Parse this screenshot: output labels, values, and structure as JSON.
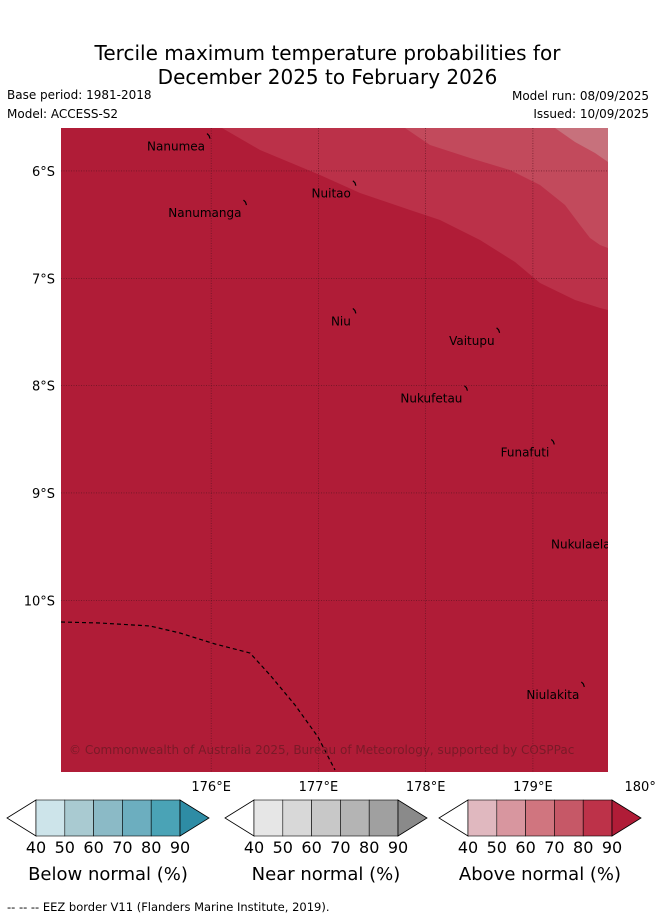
{
  "title_line1": "Tercile maximum temperature probabilities for",
  "title_line2": "December 2025 to February 2026",
  "base_period": "Base period: 1981-2018",
  "model": "Model: ACCESS-S2",
  "model_run": "Model run: 08/09/2025",
  "issued": "Issued: 10/09/2025",
  "copyright": "© Commonwealth of Australia 2025, Bureau of Meteorology, supported by COSPPac",
  "footnote": "--  --  -- EEZ border V11 (Flanders Marine Institute, 2019).",
  "map": {
    "lon_range": [
      174.6,
      179.7
    ],
    "lat_range": [
      -11.6,
      -5.6
    ],
    "lon_ticks": [
      {
        "value": 176,
        "label": "176°E"
      },
      {
        "value": 177,
        "label": "177°E"
      },
      {
        "value": 178,
        "label": "178°E"
      },
      {
        "value": 179,
        "label": "179°E"
      },
      {
        "value": 180,
        "label": "180°"
      }
    ],
    "lat_ticks": [
      {
        "value": -6,
        "label": "6°S"
      },
      {
        "value": -7,
        "label": "7°S"
      },
      {
        "value": -8,
        "label": "8°S"
      },
      {
        "value": -9,
        "label": "9°S"
      },
      {
        "value": -10,
        "label": "10°S"
      }
    ],
    "fill_color": "#b01c37",
    "islands": [
      {
        "name": "Nanumea",
        "lon": 175.98,
        "lat": -5.67
      },
      {
        "name": "Nuitao",
        "lon": 177.34,
        "lat": -6.11
      },
      {
        "name": "Nanumanga",
        "lon": 176.32,
        "lat": -6.29
      },
      {
        "name": "Niu",
        "lon": 177.34,
        "lat": -7.3
      },
      {
        "name": "Vaitupu",
        "lon": 178.68,
        "lat": -7.48
      },
      {
        "name": "Nukufetau",
        "lon": 178.38,
        "lat": -8.02
      },
      {
        "name": "Funafuti",
        "lon": 179.19,
        "lat": -8.52
      },
      {
        "name": "Nukulaelae",
        "lon": 179.83,
        "lat": -9.38
      },
      {
        "name": "Niulakita",
        "lon": 179.47,
        "lat": -10.78
      }
    ]
  },
  "colorbars": [
    {
      "label": "Below normal (%)",
      "ticks": [
        "40",
        "50",
        "60",
        "70",
        "80",
        "90"
      ],
      "colors": [
        "#ffffff",
        "#cde4ea",
        "#a9cad1",
        "#8bbac6",
        "#6caebf",
        "#4aa3b6",
        "#2e8ca5"
      ]
    },
    {
      "label": "Near normal (%)",
      "ticks": [
        "40",
        "50",
        "60",
        "70",
        "80",
        "90"
      ],
      "colors": [
        "#ffffff",
        "#e6e6e6",
        "#d8d8d8",
        "#c8c8c8",
        "#b4b4b4",
        "#a0a0a0",
        "#8a8a8a"
      ]
    },
    {
      "label": "Above normal (%)",
      "ticks": [
        "40",
        "50",
        "60",
        "70",
        "80",
        "90"
      ],
      "colors": [
        "#ffffff",
        "#e0b8bf",
        "#d8969f",
        "#d0757f",
        "#c65867",
        "#bd3249",
        "#b01c37"
      ]
    }
  ]
}
